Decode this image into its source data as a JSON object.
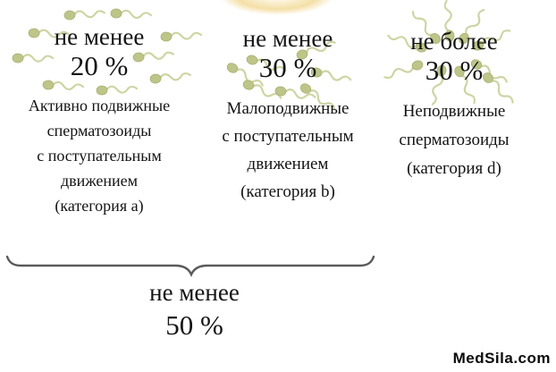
{
  "columns": [
    {
      "id": "category-a",
      "threshold_line1": "не менее",
      "threshold_line2": "20 %",
      "description": [
        "Активно подвижные",
        "сперматозоиды",
        "с поступательным",
        "движением",
        "(категория a)"
      ]
    },
    {
      "id": "category-b",
      "threshold_line1": "не менее",
      "threshold_line2": "30 %",
      "description": [
        "Малоподвижные",
        "с поступательным",
        "движением",
        "(категория b)"
      ]
    },
    {
      "id": "category-d",
      "threshold_line1": "не более",
      "threshold_line2": "30 %",
      "description": [
        "Неподвижные",
        "сперматозоиды",
        "(категория d)"
      ]
    }
  ],
  "brace_summary": {
    "line1": "не менее",
    "line2": "50 %"
  },
  "watermark": "MedSila.com",
  "icons": {
    "sperm": "sperm-icon",
    "egg": "egg-glow"
  },
  "colors": {
    "background": "#ffffff",
    "text": "#141414",
    "sperm_head": "#bdc589",
    "sperm_tail": "#cbd29e",
    "brace": "#5a5a5a",
    "egg_glow": "#f4dfa6"
  }
}
